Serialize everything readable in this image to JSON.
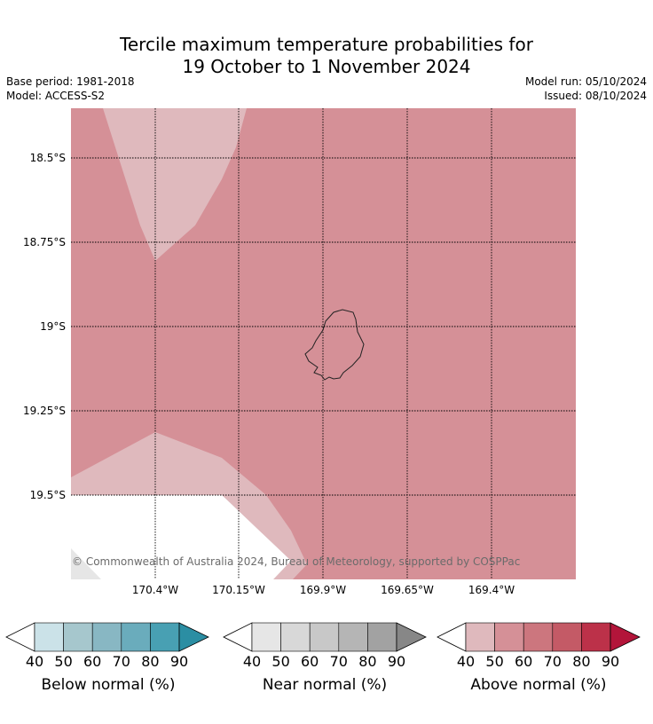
{
  "title": {
    "line1": "Tercile maximum temperature probabilities for",
    "line2": "19 October to 1 November 2024"
  },
  "meta": {
    "base_period": "Base period: 1981-2018",
    "model": "Model: ACCESS-S2",
    "model_run": "Model run: 05/10/2024",
    "issued": "Issued: 08/10/2024"
  },
  "map": {
    "lat_labels": [
      "18.5°S",
      "18.75°S",
      "19°S",
      "19.25°S",
      "19.5°S"
    ],
    "lon_labels": [
      "170.4°W",
      "170.15°W",
      "169.9°W",
      "169.65°W",
      "169.4°W"
    ],
    "copyright": "© Commonwealth of Australia 2024, Bureau of Meteorology, supported by COSPPac",
    "colors": {
      "above_50_60": "#d59097",
      "above_40_50": "#dfb9bd",
      "near_40_50": "#e6e6e6",
      "no_data": "#ffffff"
    }
  },
  "colorbars": [
    {
      "title": "Below normal (%)",
      "ticks": [
        "40",
        "50",
        "60",
        "70",
        "80",
        "90"
      ],
      "colors": [
        "#cbe2e8",
        "#a6c7cd",
        "#88b7c3",
        "#6aacbc",
        "#48a0b3",
        "#2b8ea3"
      ]
    },
    {
      "title": "Near normal (%)",
      "ticks": [
        "40",
        "50",
        "60",
        "70",
        "80",
        "90"
      ],
      "colors": [
        "#e6e6e6",
        "#d8d8d8",
        "#c8c8c8",
        "#b5b5b5",
        "#a2a2a2",
        "#878787"
      ]
    },
    {
      "title": "Above normal (%)",
      "ticks": [
        "40",
        "50",
        "60",
        "70",
        "80",
        "90"
      ],
      "colors": [
        "#dfb9bd",
        "#d59097",
        "#cc767e",
        "#c45a66",
        "#bc3149",
        "#b3153a"
      ]
    }
  ]
}
